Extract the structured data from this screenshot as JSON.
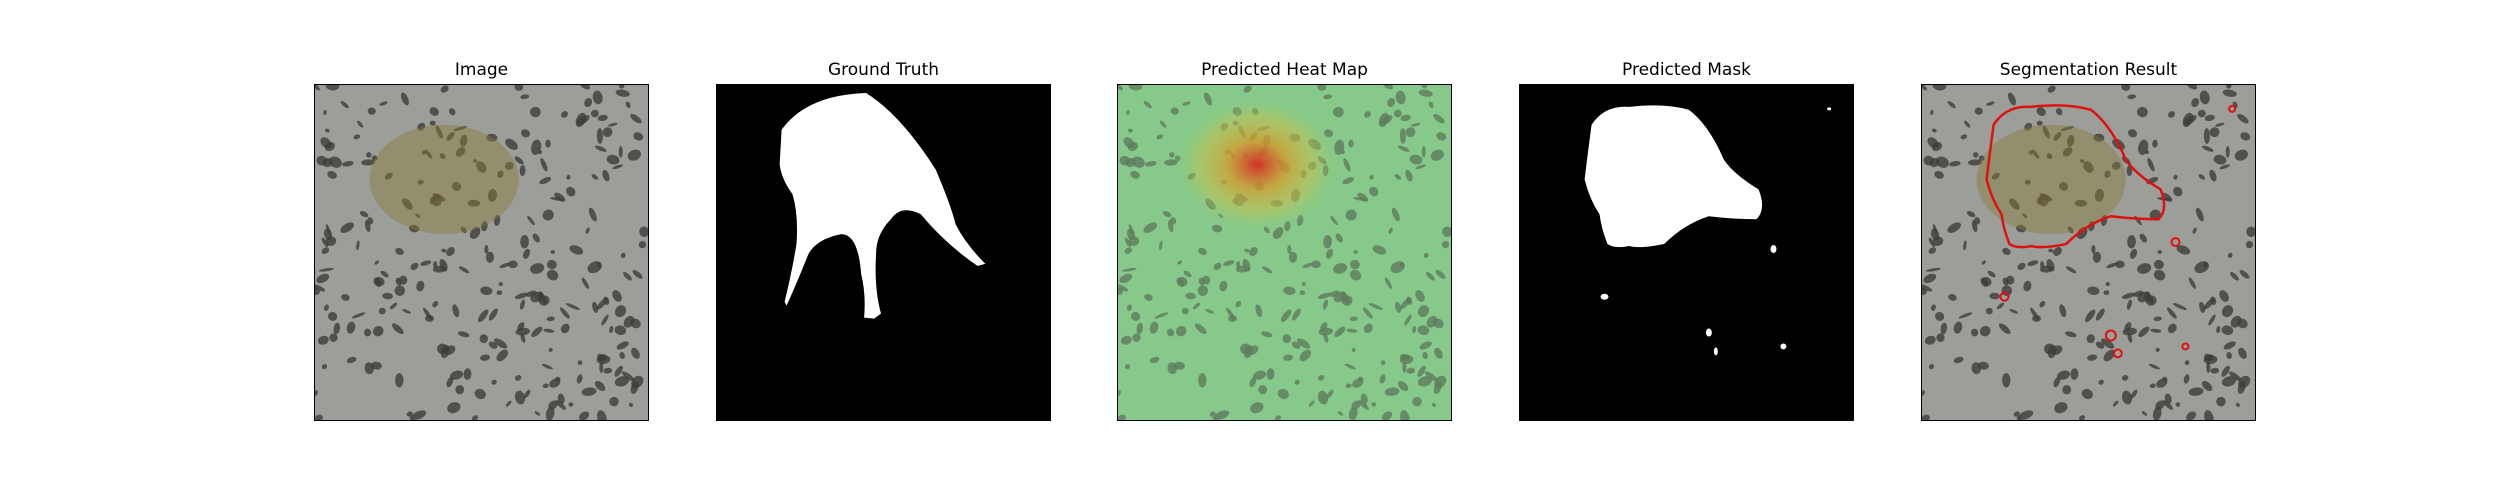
{
  "panels": [
    {
      "title": "Image"
    },
    {
      "title": "Ground Truth"
    },
    {
      "title": "Predicted Heat Map"
    },
    {
      "title": "Predicted Mask"
    },
    {
      "title": "Segmentation Result"
    }
  ],
  "colors": {
    "ground_base": "#9b9e99",
    "spot": "#3f3c38",
    "mask_fg": "#ffffff",
    "mask_bg": "#000000",
    "heat_base": "#7fcf84",
    "heat_hot": "#d9221f",
    "contour": "#e01010"
  }
}
